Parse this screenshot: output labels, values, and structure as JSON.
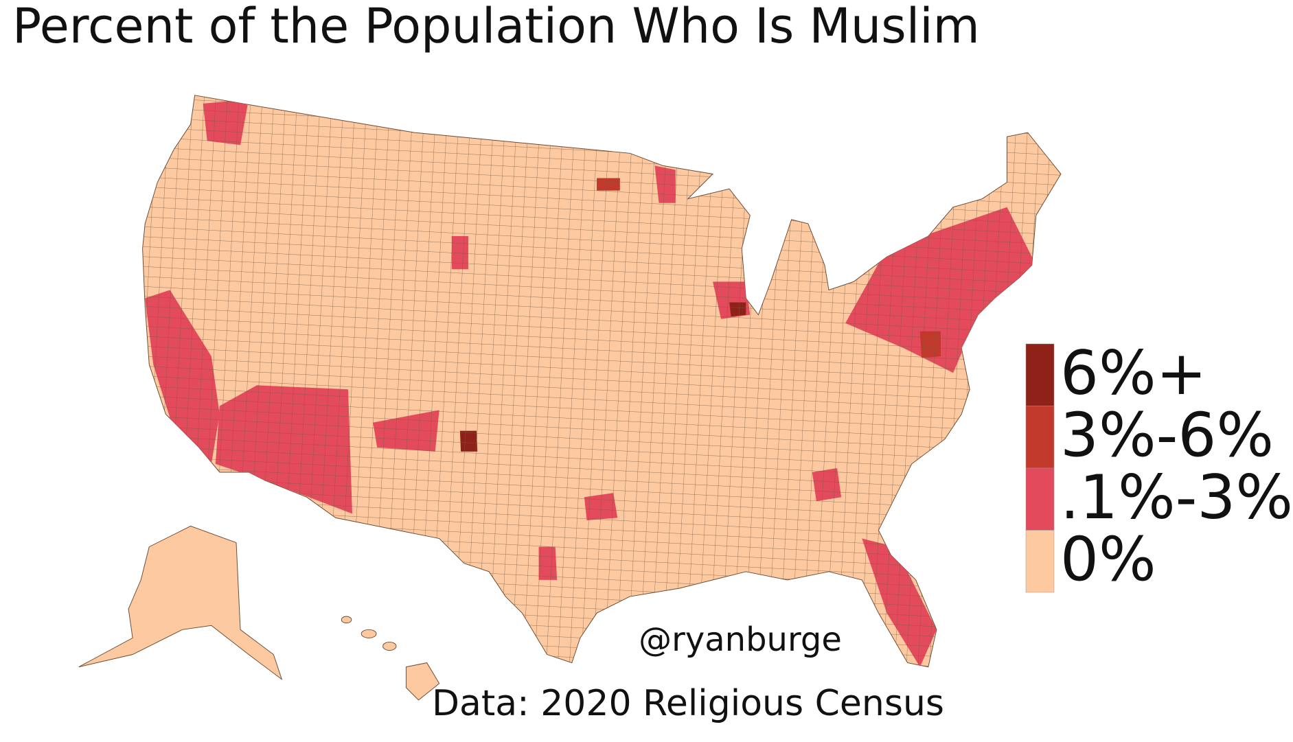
{
  "title": "Percent of the Population Who Is Muslim",
  "legend": [
    {
      "label": "6%+",
      "color": "#8e2219"
    },
    {
      "label": "3%-6%",
      "color": "#c0392b"
    },
    {
      "label": ".1%-3%",
      "color": "#e34a5c"
    },
    {
      "label": "0%",
      "color": "#fcc9a0"
    }
  ],
  "credit": "@ryanburge",
  "source": "Data: 2020 Religious Census"
}
